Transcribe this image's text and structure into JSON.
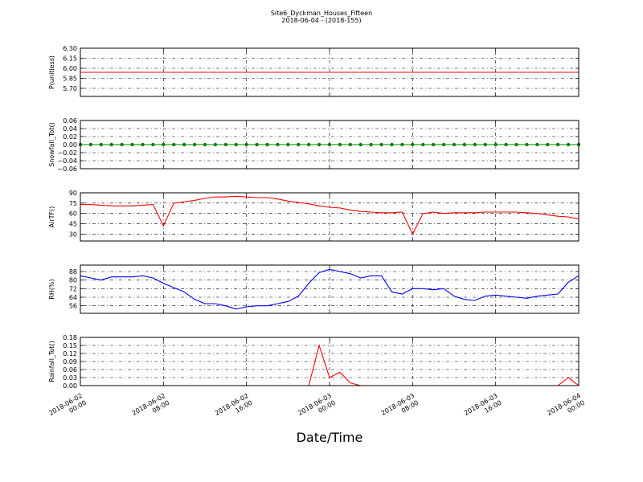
{
  "figure": {
    "title": "Site6_Dyckman_Houses_Fifteen",
    "subtitle": "2018-06-04 - (2018-155)",
    "xlabel": "Date/Time",
    "xlim": [
      "2018-06-02 00:00",
      "2018-06-04 00:00"
    ],
    "xticks": [
      {
        "value": "2018-06-02 00:00",
        "label": [
          "2018-06-02",
          "00:00"
        ]
      },
      {
        "value": "2018-06-02 08:00",
        "label": [
          "2018-06-02",
          "08:00"
        ]
      },
      {
        "value": "2018-06-02 16:00",
        "label": [
          "2018-06-02",
          "16:00"
        ]
      },
      {
        "value": "2018-06-03 00:00",
        "label": [
          "2018-06-03",
          "00:00"
        ]
      },
      {
        "value": "2018-06-03 08:00",
        "label": [
          "2018-06-03",
          "08:00"
        ]
      },
      {
        "value": "2018-06-03 16:00",
        "label": [
          "2018-06-03",
          "16:00"
        ]
      },
      {
        "value": "2018-06-04 00:00",
        "label": [
          "2018-06-04",
          "00:00"
        ]
      }
    ],
    "x": [
      "2018-06-02 00:00",
      "2018-06-02 01:00",
      "2018-06-02 02:00",
      "2018-06-02 03:00",
      "2018-06-02 04:00",
      "2018-06-02 05:00",
      "2018-06-02 06:00",
      "2018-06-02 07:00",
      "2018-06-02 08:00",
      "2018-06-02 09:00",
      "2018-06-02 10:00",
      "2018-06-02 11:00",
      "2018-06-02 12:00",
      "2018-06-02 13:00",
      "2018-06-02 14:00",
      "2018-06-02 15:00",
      "2018-06-02 16:00",
      "2018-06-02 17:00",
      "2018-06-02 18:00",
      "2018-06-02 19:00",
      "2018-06-02 20:00",
      "2018-06-02 21:00",
      "2018-06-02 22:00",
      "2018-06-02 23:00",
      "2018-06-03 00:00",
      "2018-06-03 01:00",
      "2018-06-03 02:00",
      "2018-06-03 03:00",
      "2018-06-03 04:00",
      "2018-06-03 05:00",
      "2018-06-03 06:00",
      "2018-06-03 07:00",
      "2018-06-03 08:00",
      "2018-06-03 09:00",
      "2018-06-03 10:00",
      "2018-06-03 11:00",
      "2018-06-03 12:00",
      "2018-06-03 13:00",
      "2018-06-03 14:00",
      "2018-06-03 15:00",
      "2018-06-03 16:00",
      "2018-06-03 17:00",
      "2018-06-03 18:00",
      "2018-06-03 19:00",
      "2018-06-03 20:00",
      "2018-06-03 21:00",
      "2018-06-03 22:00",
      "2018-06-03 23:00",
      "2018-06-04 00:00"
    ]
  },
  "chart_data": [
    {
      "type": "line",
      "ylabel": "P(unitless)",
      "ylim": [
        5.58,
        6.3
      ],
      "grid": true,
      "yticks": [
        {
          "value": 5.7,
          "label": "5.70"
        },
        {
          "value": 5.85,
          "label": "5.85"
        },
        {
          "value": 6.0,
          "label": "6.00"
        },
        {
          "value": 6.15,
          "label": "6.15"
        },
        {
          "value": 6.3,
          "label": "6.30"
        }
      ],
      "series": [
        {
          "color": "#ff0000",
          "values": [
            5.94,
            5.94,
            5.94,
            5.94,
            5.94,
            5.94,
            5.94,
            5.94,
            5.94,
            5.94,
            5.94,
            5.94,
            5.94,
            5.94,
            5.94,
            5.94,
            5.94,
            5.94,
            5.94,
            5.94,
            5.94,
            5.94,
            5.94,
            5.94,
            5.94,
            5.94,
            5.94,
            5.94,
            5.94,
            5.94,
            5.94,
            5.94,
            5.94,
            5.94,
            5.94,
            5.94,
            5.94,
            5.94,
            5.94,
            5.94,
            5.94,
            5.94,
            5.94,
            5.94,
            5.94,
            5.94,
            5.94,
            5.94,
            5.94
          ]
        }
      ]
    },
    {
      "type": "line",
      "ylabel": "Snowfall_Tot()",
      "ylim": [
        -0.06,
        0.06
      ],
      "grid": true,
      "yticks": [
        {
          "value": -0.06,
          "label": "−0.06"
        },
        {
          "value": -0.04,
          "label": "−0.04"
        },
        {
          "value": -0.02,
          "label": "−0.02"
        },
        {
          "value": 0,
          "label": "0.00"
        },
        {
          "value": 0.02,
          "label": "0.02"
        },
        {
          "value": 0.04,
          "label": "0.04"
        },
        {
          "value": 0.06,
          "label": "0.06"
        }
      ],
      "series": [
        {
          "color": "#008000",
          "marker": true,
          "values": [
            0,
            0,
            0,
            0,
            0,
            0,
            0,
            0,
            0,
            0,
            0,
            0,
            0,
            0,
            0,
            0,
            0,
            0,
            0,
            0,
            0,
            0,
            0,
            0,
            0,
            0,
            0,
            0,
            0,
            0,
            0,
            0,
            0,
            0,
            0,
            0,
            0,
            0,
            0,
            0,
            0,
            0,
            0,
            0,
            0,
            0,
            0,
            0,
            0
          ]
        }
      ]
    },
    {
      "type": "line",
      "ylabel": "AirTF()",
      "ylim": [
        20,
        90
      ],
      "grid": true,
      "yticks": [
        30,
        45,
        60,
        75,
        90
      ],
      "series": [
        {
          "color": "#ff0000",
          "values": [
            73,
            73,
            72,
            71,
            71,
            71,
            72,
            73,
            42,
            75,
            77,
            79,
            82,
            84,
            84,
            85,
            84,
            83,
            83,
            81,
            78,
            76,
            74,
            71,
            69,
            68,
            65,
            63,
            62,
            61,
            61,
            62,
            30,
            60,
            62,
            60,
            61,
            61,
            61,
            62,
            62,
            62,
            62,
            61,
            60,
            58,
            56,
            55,
            52
          ]
        }
      ]
    },
    {
      "type": "line",
      "ylabel": "RH(%)",
      "ylim": [
        49,
        94
      ],
      "grid": true,
      "yticks": [
        56,
        64,
        72,
        80,
        88
      ],
      "series": [
        {
          "color": "#0000ff",
          "values": [
            84,
            82,
            80,
            83,
            83,
            83,
            84,
            82,
            77,
            73,
            69,
            62,
            58,
            58,
            56,
            53,
            55,
            56,
            56,
            58,
            60,
            65,
            77,
            87,
            90,
            88,
            86,
            82,
            84,
            84,
            69,
            67,
            72,
            72,
            71,
            72,
            65,
            62,
            61,
            65,
            66,
            65,
            64,
            63,
            65,
            66,
            67,
            78,
            84
          ]
        }
      ]
    },
    {
      "type": "line",
      "ylabel": "Rainfall_Tot()",
      "ylim": [
        0,
        0.18
      ],
      "grid": true,
      "yticks": [
        {
          "value": 0,
          "label": "0.00"
        },
        {
          "value": 0.03,
          "label": "0.03"
        },
        {
          "value": 0.06,
          "label": "0.06"
        },
        {
          "value": 0.09,
          "label": "0.09"
        },
        {
          "value": 0.12,
          "label": "0.12"
        },
        {
          "value": 0.15,
          "label": "0.15"
        },
        {
          "value": 0.18,
          "label": "0.18"
        }
      ],
      "series": [
        {
          "color": "#ff0000",
          "values": [
            0,
            0,
            0,
            0,
            0,
            0,
            0,
            0,
            0,
            0,
            0,
            0,
            0,
            0,
            0,
            0,
            0,
            0,
            0,
            0,
            0,
            0,
            0,
            0.15,
            0.03,
            0.05,
            0.01,
            0,
            0,
            0,
            0,
            0,
            0,
            0,
            0,
            0,
            0,
            0,
            0,
            0,
            0,
            0,
            0,
            0,
            0,
            0,
            0,
            0.03,
            0
          ]
        }
      ]
    }
  ]
}
